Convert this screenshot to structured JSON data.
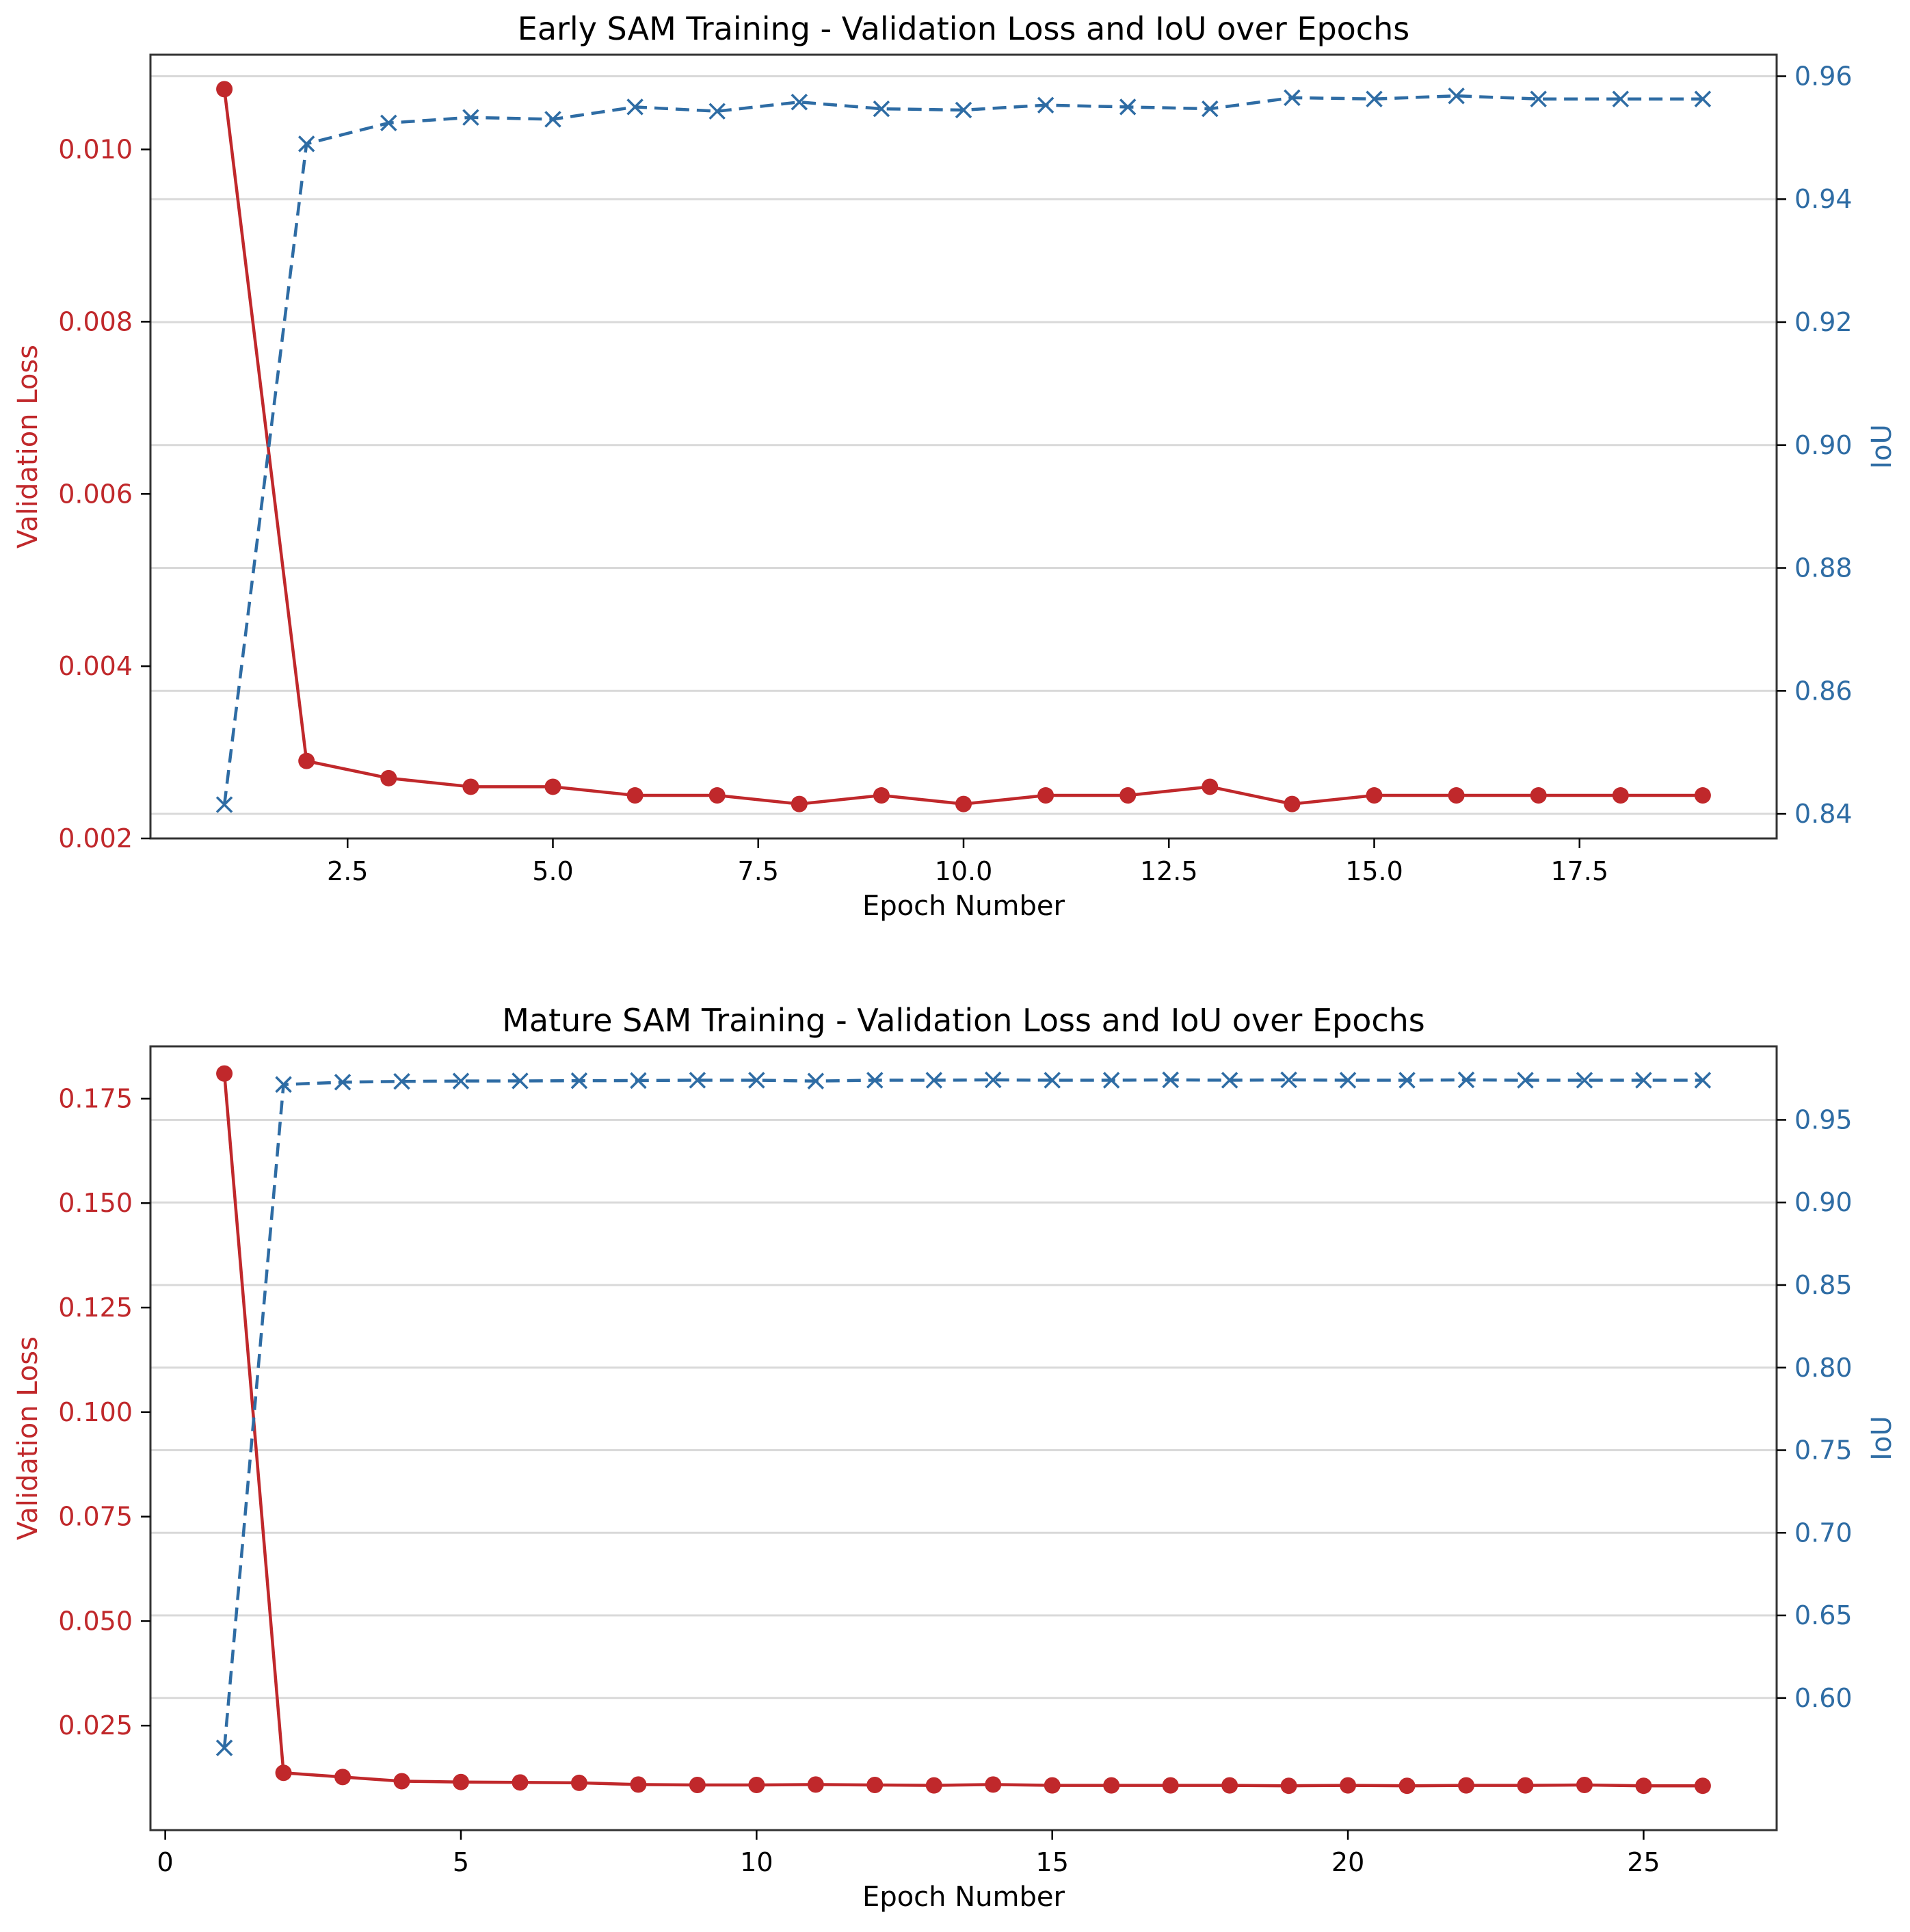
{
  "colors": {
    "loss": "#c0282b",
    "iou": "#2e6ca4",
    "grid": "#d9d9d9",
    "axis": "#000000",
    "text": "#000000"
  },
  "chart_data": [
    {
      "type": "line",
      "title": "Early SAM Training - Validation Loss and IoU over Epochs",
      "xlabel": "Epoch Number",
      "ylabel_left": "Validation Loss",
      "ylabel_right": "IoU",
      "xlim": [
        0.1,
        19.9
      ],
      "ylim_left": [
        0.002,
        0.0111
      ],
      "ylim_right": [
        0.836,
        0.9635
      ],
      "xticks": [
        2.5,
        5.0,
        7.5,
        10.0,
        12.5,
        15.0,
        17.5
      ],
      "xtick_labels": [
        "2.5",
        "5.0",
        "7.5",
        "10.0",
        "12.5",
        "15.0",
        "17.5"
      ],
      "yticks_left": [
        0.002,
        0.004,
        0.006,
        0.008,
        0.01
      ],
      "ytick_labels_left": [
        "0.002",
        "0.004",
        "0.006",
        "0.008",
        "0.010"
      ],
      "yticks_right": [
        0.84,
        0.86,
        0.88,
        0.9,
        0.92,
        0.94,
        0.96
      ],
      "ytick_labels_right": [
        "0.84",
        "0.86",
        "0.88",
        "0.90",
        "0.92",
        "0.94",
        "0.96"
      ],
      "grid": "horizontal (right axis)",
      "x": [
        1,
        2,
        3,
        4,
        5,
        6,
        7,
        8,
        9,
        10,
        11,
        12,
        13,
        14,
        15,
        16,
        17,
        18,
        19
      ],
      "series": [
        {
          "axis": "left",
          "style": "solid",
          "marker": "circle",
          "values": [
            0.0107,
            0.0029,
            0.0027,
            0.0026,
            0.0026,
            0.0025,
            0.0025,
            0.0024,
            0.0025,
            0.0024,
            0.0025,
            0.0025,
            0.0026,
            0.0024,
            0.0025,
            0.0025,
            0.0025,
            0.0025,
            0.0025
          ]
        },
        {
          "axis": "right",
          "style": "dashed",
          "marker": "x",
          "values": [
            0.8415,
            0.949,
            0.9524,
            0.9533,
            0.953,
            0.955,
            0.9543,
            0.9558,
            0.9547,
            0.9545,
            0.9553,
            0.955,
            0.9547,
            0.9565,
            0.9563,
            0.9568,
            0.9563,
            0.9563,
            0.9563
          ]
        }
      ]
    },
    {
      "type": "line",
      "title": "Mature SAM Training - Validation Loss and IoU over Epochs",
      "xlabel": "Epoch Number",
      "ylabel_left": "Validation Loss",
      "ylabel_right": "IoU",
      "xlim": [
        -0.25,
        27.25
      ],
      "ylim_left": [
        0.0,
        0.1875
      ],
      "ylim_right": [
        0.52,
        0.9945
      ],
      "xticks": [
        0,
        5,
        10,
        15,
        20,
        25
      ],
      "xtick_labels": [
        "0",
        "5",
        "10",
        "15",
        "20",
        "25"
      ],
      "yticks_left": [
        0.025,
        0.05,
        0.075,
        0.1,
        0.125,
        0.15,
        0.175
      ],
      "ytick_labels_left": [
        "0.025",
        "0.050",
        "0.075",
        "0.100",
        "0.125",
        "0.150",
        "0.175"
      ],
      "yticks_right": [
        0.6,
        0.65,
        0.7,
        0.75,
        0.8,
        0.85,
        0.9,
        0.95
      ],
      "ytick_labels_right": [
        "0.60",
        "0.65",
        "0.70",
        "0.75",
        "0.80",
        "0.85",
        "0.90",
        "0.95"
      ],
      "grid": "horizontal (right axis)",
      "x": [
        1,
        2,
        3,
        4,
        5,
        6,
        7,
        8,
        9,
        10,
        11,
        12,
        13,
        14,
        15,
        16,
        17,
        18,
        19,
        20,
        21,
        22,
        23,
        24,
        25,
        26
      ],
      "series": [
        {
          "axis": "left",
          "style": "solid",
          "marker": "circle",
          "values": [
            0.181,
            0.0137,
            0.0127,
            0.0117,
            0.0115,
            0.0114,
            0.0113,
            0.0109,
            0.0108,
            0.0108,
            0.0109,
            0.0108,
            0.0107,
            0.0109,
            0.0107,
            0.0107,
            0.0107,
            0.0107,
            0.0106,
            0.0107,
            0.0106,
            0.0107,
            0.0107,
            0.0108,
            0.0106,
            0.0106
          ]
        },
        {
          "axis": "right",
          "style": "dashed",
          "marker": "x",
          "values": [
            0.5698,
            0.9714,
            0.9728,
            0.9733,
            0.9735,
            0.9736,
            0.9737,
            0.9738,
            0.974,
            0.974,
            0.9735,
            0.974,
            0.974,
            0.9742,
            0.974,
            0.974,
            0.9742,
            0.974,
            0.9742,
            0.974,
            0.974,
            0.9742,
            0.974,
            0.974,
            0.974,
            0.974
          ]
        }
      ]
    }
  ]
}
